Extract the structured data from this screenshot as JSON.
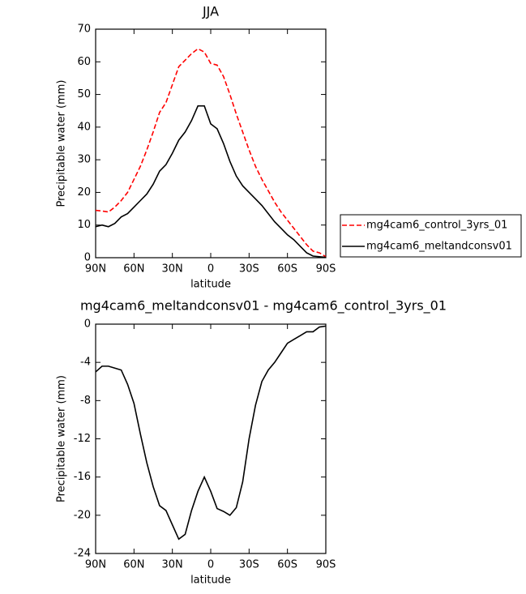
{
  "chart_data": [
    {
      "type": "line",
      "title": "JJA",
      "xlabel": "latitude",
      "ylabel": "Precipitable water (mm)",
      "x": [
        90,
        85,
        80,
        75,
        70,
        65,
        60,
        55,
        50,
        45,
        40,
        35,
        30,
        25,
        20,
        15,
        10,
        5,
        0,
        -5,
        -10,
        -15,
        -20,
        -25,
        -30,
        -35,
        -40,
        -45,
        -50,
        -55,
        -60,
        -65,
        -70,
        -75,
        -80,
        -85,
        -90
      ],
      "xlim": [
        90,
        -90
      ],
      "xticks": [
        {
          "value": 90,
          "label": "90N"
        },
        {
          "value": 60,
          "label": "60N"
        },
        {
          "value": 30,
          "label": "30N"
        },
        0,
        {
          "value": -30,
          "label": "30S"
        },
        {
          "value": -60,
          "label": "60S"
        },
        {
          "value": -90,
          "label": "90S"
        }
      ],
      "ylim": [
        0,
        70
      ],
      "yticks": [
        0,
        10,
        20,
        30,
        40,
        50,
        60,
        70
      ],
      "legend": "right",
      "series": [
        {
          "name": "mg4cam6_control_3yrs_01",
          "color": "#ff0000",
          "dash": "dashed",
          "values": [
            14.5,
            14.3,
            14,
            15.5,
            17.5,
            20,
            24,
            28,
            33,
            38.5,
            44.5,
            47.5,
            53,
            58.5,
            60.5,
            62.5,
            64,
            63,
            59.5,
            59,
            55.5,
            50,
            44,
            38.5,
            33,
            28,
            24,
            20.5,
            17,
            14,
            11.5,
            9,
            6.5,
            4,
            2,
            1.5,
            0.3
          ]
        },
        {
          "name": "mg4cam6_meltandconsv01",
          "color": "#000000",
          "dash": "solid",
          "values": [
            9.5,
            10,
            9.5,
            10.5,
            12.5,
            13.5,
            15.5,
            17.5,
            19.5,
            22.5,
            26.5,
            28.5,
            32,
            36,
            38.5,
            42,
            46.5,
            46.5,
            41,
            39.5,
            35,
            29.5,
            25,
            22,
            20,
            18,
            16,
            13.5,
            11,
            9,
            7,
            5.5,
            3.5,
            1.5,
            0.5,
            0.3,
            0.1
          ]
        }
      ]
    },
    {
      "type": "line",
      "title": "mg4cam6_meltandconsv01 - mg4cam6_control_3yrs_01",
      "xlabel": "latitude",
      "ylabel": "Precipitable water (mm)",
      "x": [
        90,
        85,
        80,
        75,
        70,
        65,
        60,
        55,
        50,
        45,
        40,
        35,
        30,
        25,
        20,
        15,
        10,
        5,
        0,
        -5,
        -10,
        -15,
        -20,
        -25,
        -30,
        -35,
        -40,
        -45,
        -50,
        -55,
        -60,
        -65,
        -70,
        -75,
        -80,
        -85,
        -90
      ],
      "xlim": [
        90,
        -90
      ],
      "xticks": [
        {
          "value": 90,
          "label": "90N"
        },
        {
          "value": 60,
          "label": "60N"
        },
        {
          "value": 30,
          "label": "30N"
        },
        0,
        {
          "value": -30,
          "label": "30S"
        },
        {
          "value": -60,
          "label": "60S"
        },
        {
          "value": -90,
          "label": "90S"
        }
      ],
      "ylim": [
        -24,
        0
      ],
      "yticks": [
        -24,
        -20,
        -16,
        -12,
        -8,
        -4,
        0
      ],
      "series": [
        {
          "color": "#000000",
          "dash": "solid",
          "values": [
            -5,
            -4.4,
            -4.4,
            -4.6,
            -4.8,
            -6.3,
            -8.3,
            -11.5,
            -14.5,
            -17,
            -19,
            -19.5,
            -21,
            -22.5,
            -22,
            -19.5,
            -17.5,
            -16,
            -17.5,
            -19.3,
            -19.6,
            -20,
            -19.2,
            -16.5,
            -12,
            -8.5,
            -6,
            -4.8,
            -4,
            -3,
            -2,
            -1.6,
            -1.2,
            -0.8,
            -0.8,
            -0.3,
            -0.2
          ]
        }
      ]
    }
  ]
}
